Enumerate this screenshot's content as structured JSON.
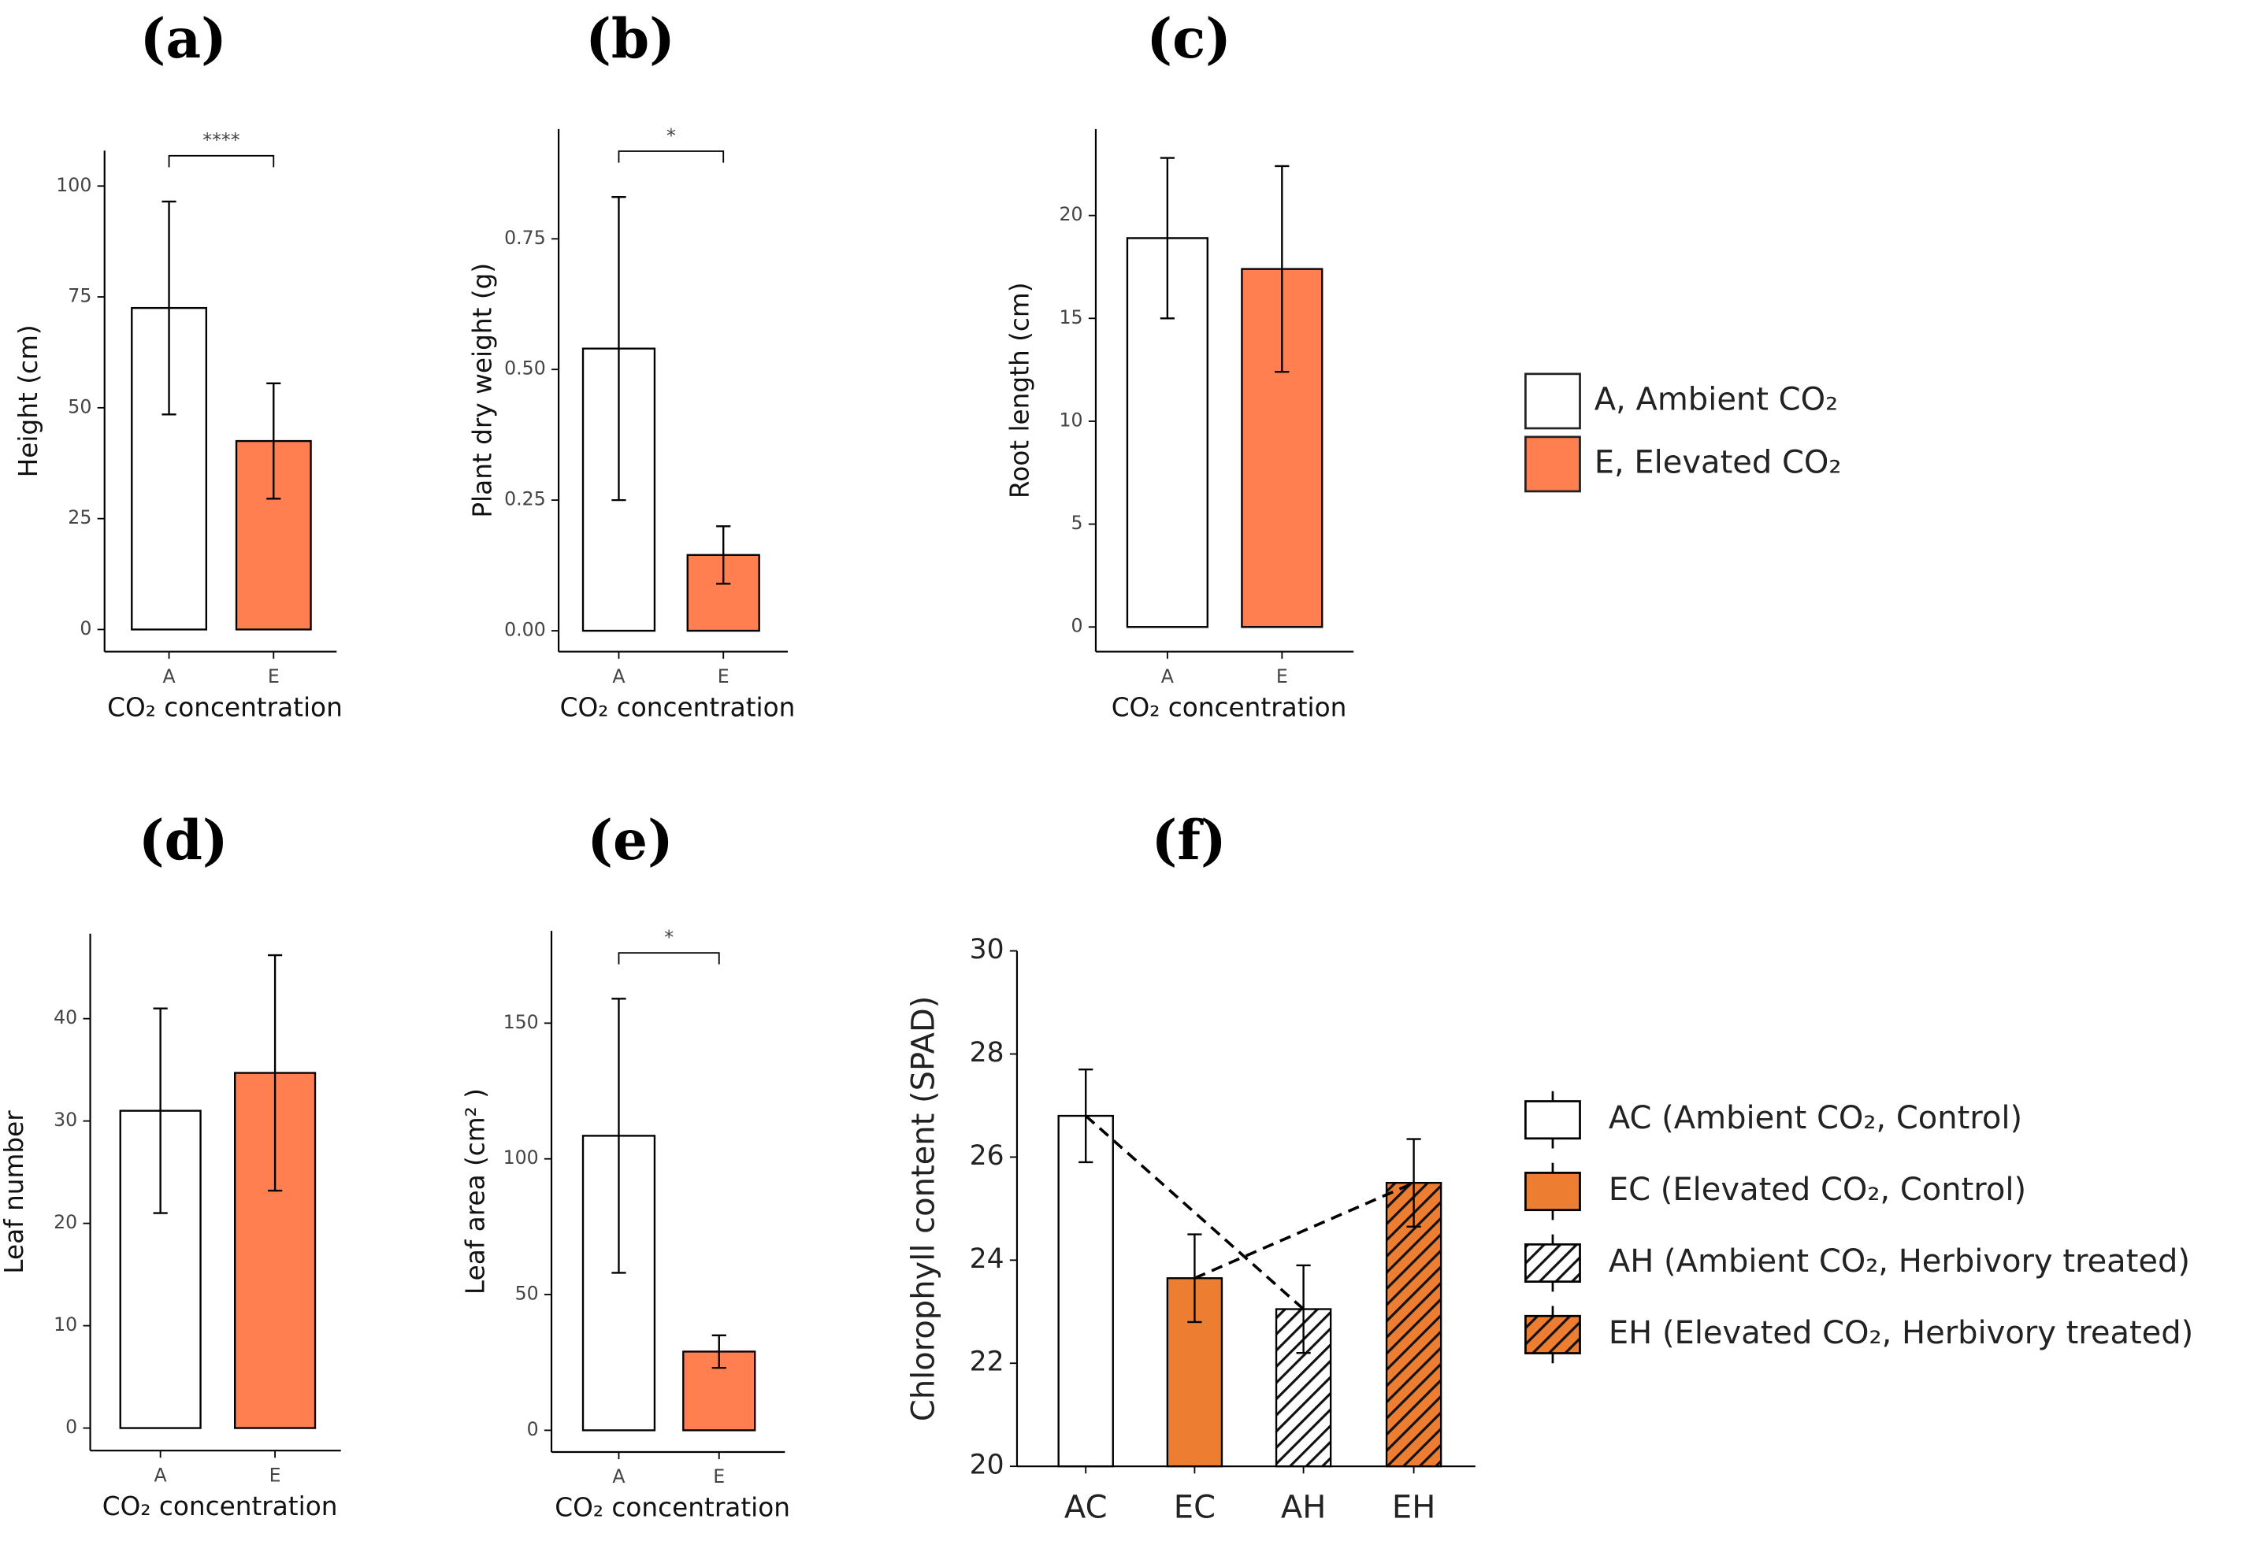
{
  "chart_data": [
    {
      "type": "bar",
      "title": "(a)",
      "categories": [
        "A",
        "E"
      ],
      "values": [
        72.5,
        42.5
      ],
      "errors": [
        24,
        13
      ],
      "colors": [
        "#ffffff",
        "#ff7f50"
      ],
      "ylabel": "Height (cm)",
      "xlabel": "CO₂ concentration",
      "ylim": [
        -5,
        108
      ],
      "yticks": [
        0,
        25,
        50,
        75,
        100
      ],
      "significance": "****"
    },
    {
      "type": "bar",
      "title": "(b)",
      "categories": [
        "A",
        "E"
      ],
      "values": [
        0.54,
        0.145
      ],
      "errors": [
        0.29,
        0.055
      ],
      "colors": [
        "#ffffff",
        "#ff7f50"
      ],
      "ylabel": "Plant dry weight (g)",
      "xlabel": "CO₂ concentration",
      "ylim": [
        -0.04,
        0.96
      ],
      "yticks": [
        {
          "value": 0,
          "label": "0.00"
        },
        {
          "value": 0.25,
          "label": "0.25"
        },
        {
          "value": 0.5,
          "label": "0.50"
        },
        {
          "value": 0.75,
          "label": "0.75"
        }
      ],
      "significance": "*"
    },
    {
      "type": "bar",
      "title": "(c)",
      "categories": [
        "A",
        "E"
      ],
      "values": [
        18.9,
        17.4
      ],
      "errors": [
        3.9,
        5
      ],
      "colors": [
        "#ffffff",
        "#ff7f50"
      ],
      "ylabel": "Root length (cm)",
      "xlabel": "CO₂ concentration",
      "ylim": [
        -1.2,
        24.2
      ],
      "yticks": [
        0,
        5,
        10,
        15,
        20
      ],
      "legend": [
        {
          "name": "A, Ambient CO₂",
          "color": "#ffffff"
        },
        {
          "name": "E, Elevated CO₂",
          "color": "#ff7f50"
        }
      ],
      "legend_position": "right"
    },
    {
      "type": "bar",
      "title": "(d)",
      "categories": [
        "A",
        "E"
      ],
      "values": [
        31,
        34.7
      ],
      "errors": [
        10,
        11.5
      ],
      "colors": [
        "#ffffff",
        "#ff7f50"
      ],
      "ylabel": "Leaf number",
      "xlabel": "CO₂ concentration",
      "ylim": [
        -2.2,
        48.3
      ],
      "yticks": [
        0,
        10,
        20,
        30,
        40
      ]
    },
    {
      "type": "bar",
      "title": "(e)",
      "categories": [
        "A",
        "E"
      ],
      "values": [
        108.5,
        29
      ],
      "errors": [
        50.5,
        6
      ],
      "colors": [
        "#ffffff",
        "#ff7f50"
      ],
      "ylabel": "Leaf area (cm² )",
      "xlabel": "CO₂ concentration",
      "ylim": [
        -8,
        184
      ],
      "yticks": [
        0,
        50,
        100,
        150
      ],
      "significance": "*"
    },
    {
      "type": "bar",
      "title": "(f)",
      "categories": [
        "AC",
        "EC",
        "AH",
        "EH"
      ],
      "values": [
        26.8,
        23.65,
        23.05,
        25.5
      ],
      "errors": [
        0.9,
        0.85,
        0.85,
        0.85
      ],
      "colors": [
        "#ffffff",
        "#ed7d31",
        "#ffffff",
        "#ed7d31"
      ],
      "hatch": [
        false,
        false,
        true,
        true
      ],
      "ylabel": "Chlorophyll content (SPAD)",
      "ylim": [
        20,
        30
      ],
      "yticks": [
        20,
        22,
        24,
        26,
        28,
        30
      ],
      "connect": [
        [
          "AC",
          "AH"
        ],
        [
          "EC",
          "EH"
        ]
      ],
      "legend": [
        {
          "name": "AC (Ambient CO₂, Control)",
          "color": "#ffffff",
          "hatch": false
        },
        {
          "name": "EC (Elevated CO₂, Control)",
          "color": "#ed7d31",
          "hatch": false
        },
        {
          "name": "AH (Ambient CO₂, Herbivory treated)",
          "color": "#ffffff",
          "hatch": true
        },
        {
          "name": "EH (Elevated CO₂, Herbivory treated)",
          "color": "#ed7d31",
          "hatch": true
        }
      ],
      "legend_position": "right"
    }
  ]
}
